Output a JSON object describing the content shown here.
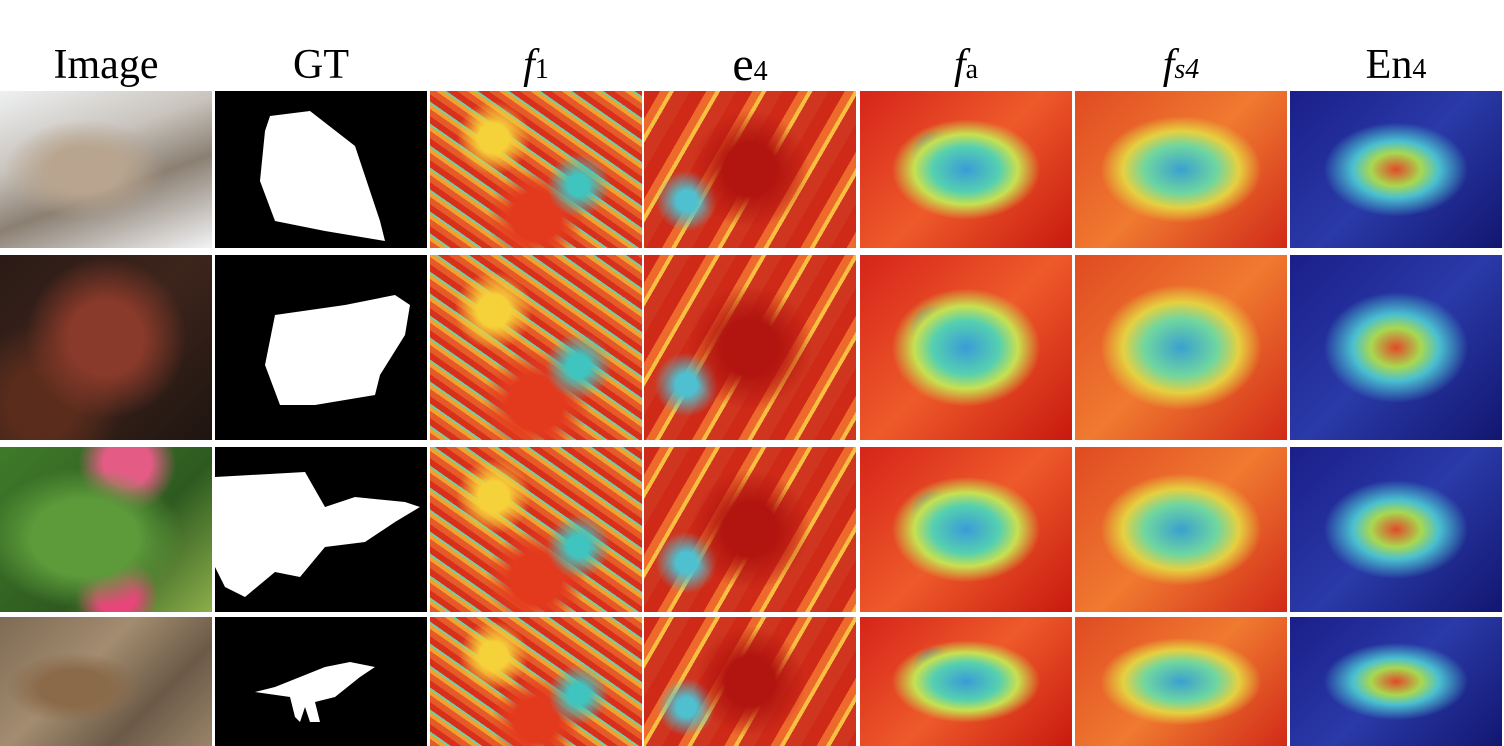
{
  "columns": [
    {
      "label": "Image"
    },
    {
      "label": "GT"
    },
    {
      "main": "f",
      "sub": "1"
    },
    {
      "main": "e",
      "sub": "4"
    },
    {
      "main": "f",
      "sub": "a"
    },
    {
      "main": "f",
      "sub": "s4"
    },
    {
      "main": "En",
      "sub": "4"
    }
  ]
}
